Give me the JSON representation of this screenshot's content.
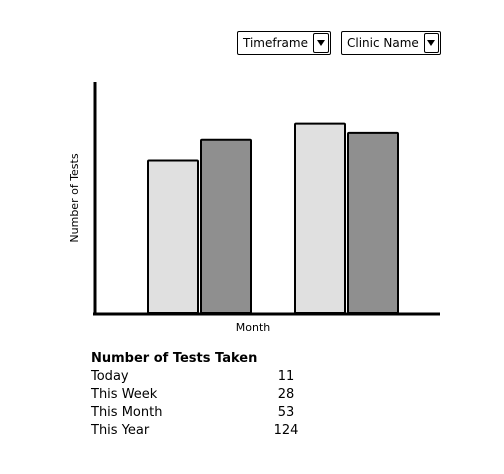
{
  "filters": {
    "timeframe_label": "Timeframe",
    "clinic_label": "Clinic Name"
  },
  "chart_data": {
    "type": "bar",
    "xlabel": "Month",
    "ylabel": "Number of Tests",
    "categories": [
      "",
      ""
    ],
    "series": [
      {
        "values": [
          66,
          82
        ],
        "color": "#e0e0e0"
      },
      {
        "values": [
          75,
          78
        ],
        "color": "#8f8f8f"
      }
    ],
    "ylim": [
      0,
      100
    ]
  },
  "summary": {
    "title": "Number of Tests Taken",
    "rows": [
      {
        "label": "Today",
        "value": "11"
      },
      {
        "label": "This Week",
        "value": "28"
      },
      {
        "label": "This Month",
        "value": "53"
      },
      {
        "label": "This Year",
        "value": "124"
      }
    ]
  }
}
